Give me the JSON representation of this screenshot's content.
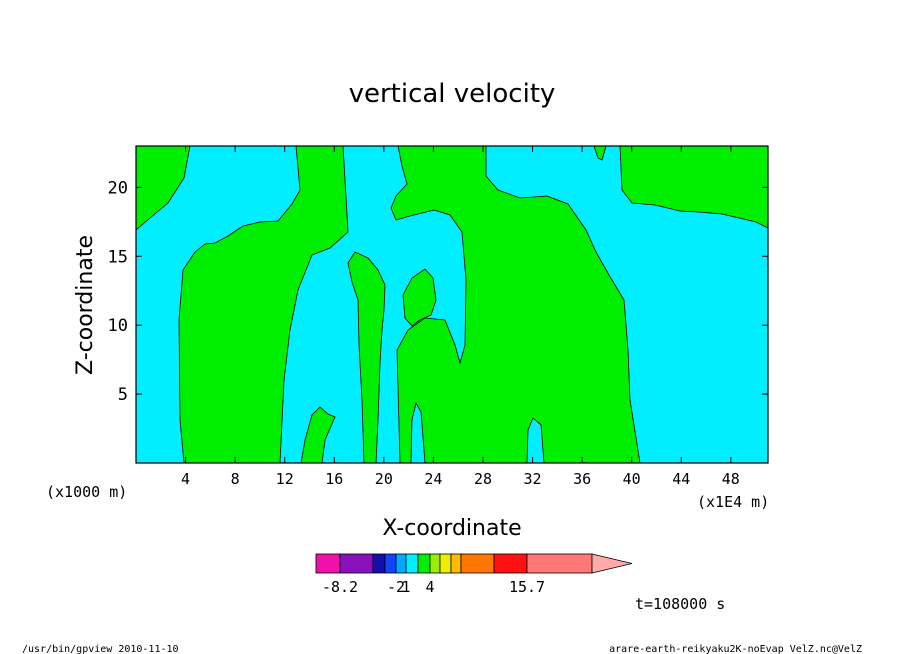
{
  "chart_data": {
    "type": "contour",
    "title": "vertical velocity",
    "xlabel": "X-coordinate",
    "ylabel": "Z-coordinate",
    "x_unit_label": "(x1E4 m)",
    "y_unit_label": "(x1000 m)",
    "xlim": [
      0,
      51
    ],
    "ylim": [
      0,
      23
    ],
    "x_ticks": [
      4,
      8,
      12,
      16,
      20,
      24,
      28,
      32,
      36,
      40,
      44,
      48
    ],
    "y_ticks": [
      5,
      10,
      15,
      20
    ],
    "region_colors": {
      "positive_green": "#00ee00",
      "slight_negative_cyan": "#00eeff"
    },
    "colorbar": {
      "colors": [
        "#ee11aa",
        "#8811bb",
        "#1111aa",
        "#1144ff",
        "#00aaff",
        "#00eeff",
        "#00ee00",
        "#99ee00",
        "#eeee00",
        "#ffbb00",
        "#ff7700",
        "#ff1111",
        "#ff7777",
        "#ffaaaa"
      ],
      "tick_labels": [
        "-8.2",
        "-2",
        "1",
        "4",
        "15.7"
      ]
    },
    "time_label": "t=108000 s"
  },
  "footer": {
    "left": "/usr/bin/gpview 2010-11-10",
    "right": "arare-earth-reikyaku2K-noEvap_VelZ.nc@VelZ"
  }
}
